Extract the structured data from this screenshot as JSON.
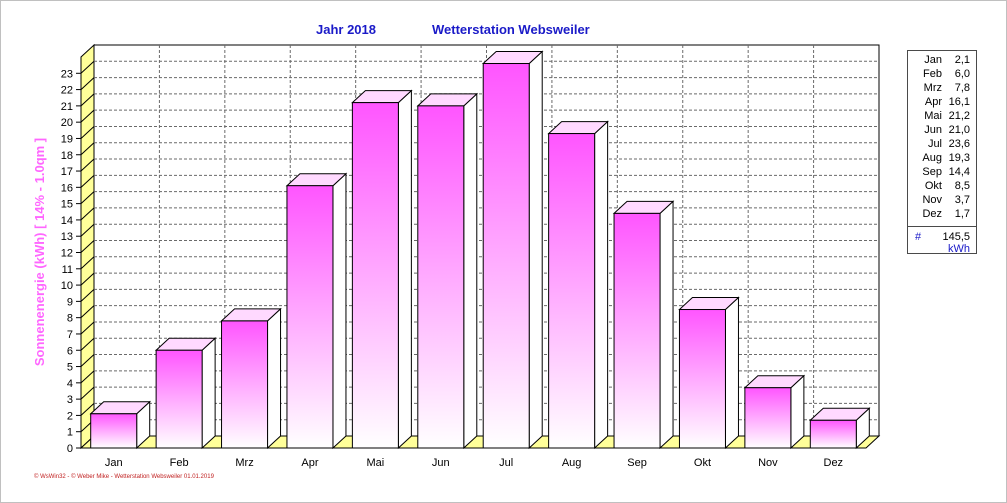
{
  "header": {
    "year_label": "Jahr  2018",
    "station": "Wetterstation Websweiler"
  },
  "legend": {
    "total": "145,5",
    "total_prefix": "#",
    "unit": "kWh"
  },
  "footer": "© WsWin32  -  © Weber Mike  -  Wetterstation Websweiler  01.01.2019",
  "colors": {
    "bar_top": "#ff55ff",
    "bar_bottom": "#ffffff",
    "side_wall": "#ffff99",
    "title": "#1a1ac8",
    "ylabel": "#ff66ff"
  },
  "chart_data": {
    "type": "bar",
    "categories": [
      "Jan",
      "Feb",
      "Mrz",
      "Apr",
      "Mai",
      "Jun",
      "Jul",
      "Aug",
      "Sep",
      "Okt",
      "Nov",
      "Dez"
    ],
    "values": [
      2.1,
      6.0,
      7.8,
      16.1,
      21.2,
      21.0,
      23.6,
      19.3,
      14.4,
      8.5,
      3.7,
      1.7
    ],
    "value_labels": [
      "2,1",
      "6,0",
      "7,8",
      "16,1",
      "21,2",
      "21,0",
      "23,6",
      "19,3",
      "14,4",
      "8,5",
      "3,7",
      "1,7"
    ],
    "ylabel": "Sonnenenergie  (kWh)    [ 14% - 1.0qm ]",
    "ylim": [
      0,
      24
    ],
    "yticks": [
      0,
      1,
      2,
      3,
      4,
      5,
      6,
      7,
      8,
      9,
      10,
      11,
      12,
      13,
      14,
      15,
      16,
      17,
      18,
      19,
      20,
      21,
      22,
      23
    ],
    "grid": true,
    "legend_position": "right"
  }
}
